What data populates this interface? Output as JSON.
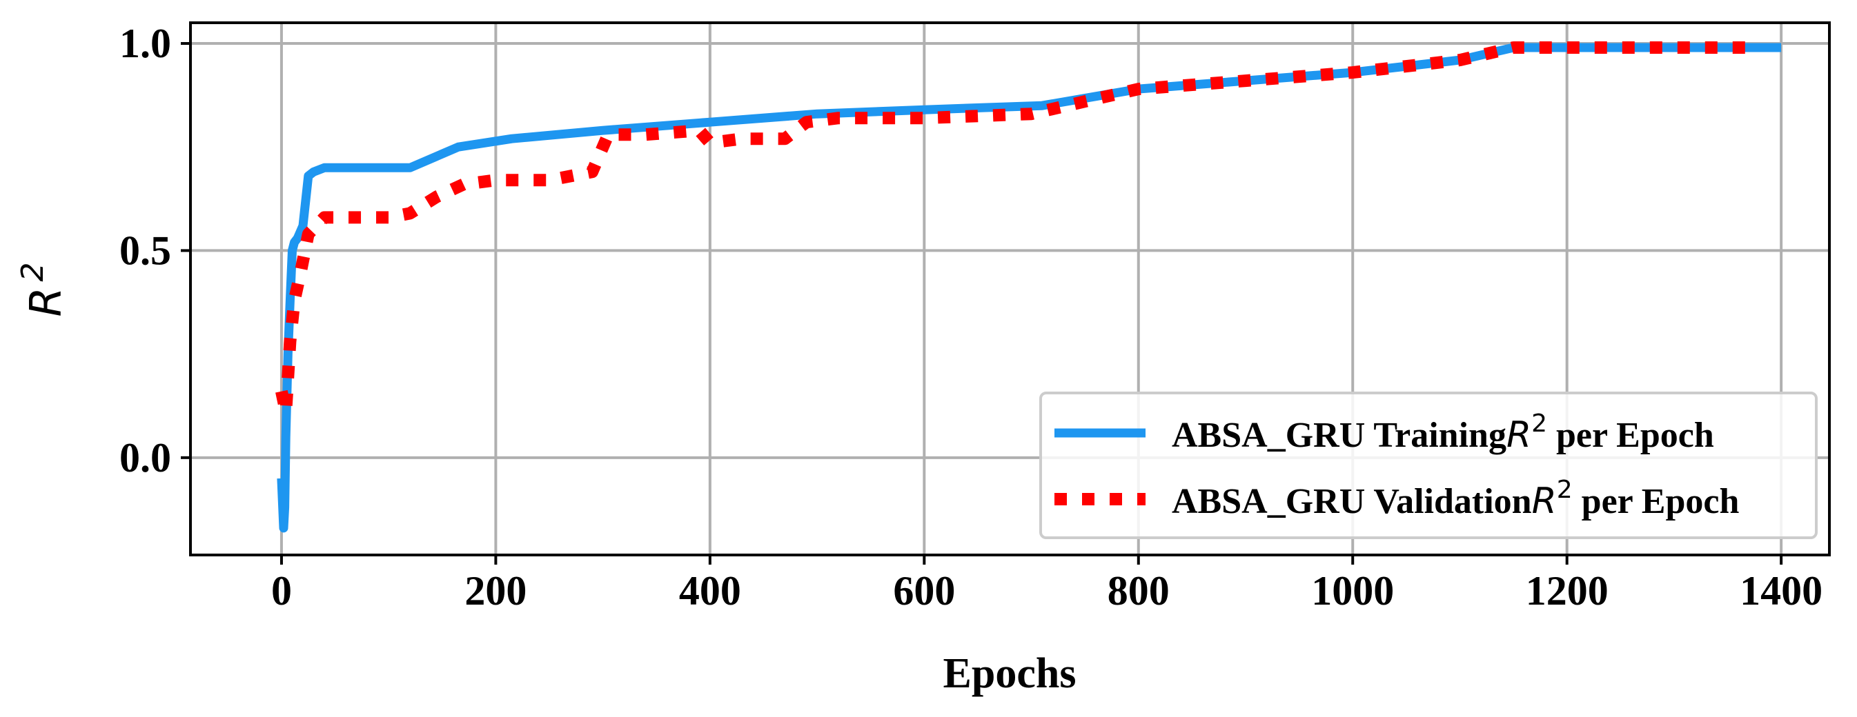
{
  "chart_data": {
    "type": "line",
    "title": "",
    "xlabel": "Epochs",
    "ylabel": "R",
    "ylabel_superscript": "2",
    "xlim": [
      -85,
      1445
    ],
    "ylim": [
      -0.235,
      1.05
    ],
    "xticks": [
      0,
      200,
      400,
      600,
      800,
      1000,
      1200,
      1400
    ],
    "xtick_labels": [
      "0",
      "200",
      "400",
      "600",
      "800",
      "1000",
      "1200",
      "1400"
    ],
    "yticks": [
      0.0,
      0.5,
      1.0
    ],
    "ytick_labels": [
      "0.0",
      "0.5",
      "1.0"
    ],
    "grid": true,
    "legend_position": "lower-right",
    "series": [
      {
        "name": "ABSA_GRU Training R² per Epoch",
        "legend_prefix": "ABSA_GRU Training",
        "legend_suffix": " per Epoch",
        "color": "#1e96f0",
        "style": "solid",
        "x": [
          0,
          2,
          3,
          4,
          6,
          8,
          10,
          12,
          15,
          20,
          25,
          30,
          40,
          60,
          100,
          120,
          165,
          215,
          300,
          400,
          500,
          600,
          710,
          800,
          900,
          1000,
          1100,
          1150,
          1200,
          1300,
          1400
        ],
        "y": [
          -0.05,
          -0.17,
          -0.12,
          0.05,
          0.25,
          0.38,
          0.5,
          0.52,
          0.53,
          0.56,
          0.68,
          0.69,
          0.7,
          0.7,
          0.7,
          0.7,
          0.75,
          0.77,
          0.79,
          0.81,
          0.83,
          0.84,
          0.85,
          0.89,
          0.91,
          0.93,
          0.96,
          0.99,
          0.99,
          0.99,
          0.99
        ]
      },
      {
        "name": "ABSA_GRU Validation R² per Epoch",
        "legend_prefix": "ABSA_GRU Validation",
        "legend_suffix": " per Epoch",
        "color": "#ff0000",
        "style": "dotted",
        "x": [
          0,
          4,
          8,
          12,
          18,
          25,
          40,
          70,
          100,
          120,
          145,
          170,
          200,
          250,
          290,
          305,
          340,
          390,
          400,
          430,
          470,
          490,
          520,
          600,
          700,
          800,
          900,
          1000,
          1100,
          1150,
          1200,
          1300,
          1370
        ],
        "y": [
          0.16,
          0.11,
          0.28,
          0.38,
          0.45,
          0.54,
          0.58,
          0.58,
          0.58,
          0.59,
          0.63,
          0.66,
          0.67,
          0.67,
          0.69,
          0.78,
          0.78,
          0.79,
          0.76,
          0.77,
          0.77,
          0.81,
          0.82,
          0.82,
          0.83,
          0.89,
          0.91,
          0.93,
          0.96,
          0.99,
          0.99,
          0.99,
          0.99
        ]
      }
    ]
  }
}
